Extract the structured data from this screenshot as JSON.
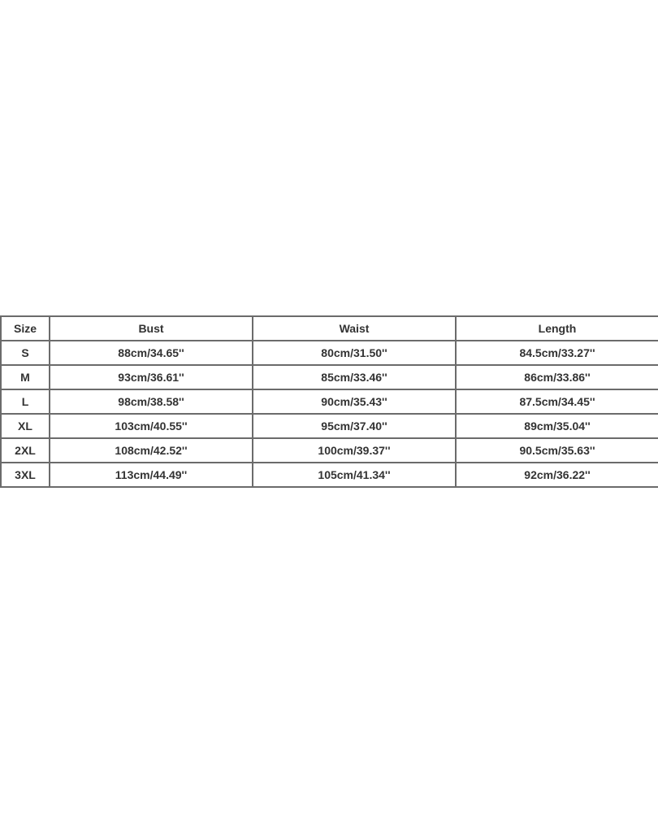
{
  "table": {
    "headers": [
      "Size",
      "Bust",
      "Waist",
      "Length"
    ],
    "rows": [
      [
        "S",
        "88cm/34.65''",
        "80cm/31.50''",
        "84.5cm/33.27''"
      ],
      [
        "M",
        "93cm/36.61''",
        "85cm/33.46''",
        "86cm/33.86''"
      ],
      [
        "L",
        "98cm/38.58''",
        "90cm/35.43''",
        "87.5cm/34.45''"
      ],
      [
        "XL",
        "103cm/40.55''",
        "95cm/37.40''",
        "89cm/35.04''"
      ],
      [
        "2XL",
        "108cm/42.52''",
        "100cm/39.37''",
        "90.5cm/35.63''"
      ],
      [
        "3XL",
        "113cm/44.49''",
        "105cm/41.34''",
        "92cm/36.22''"
      ]
    ]
  }
}
